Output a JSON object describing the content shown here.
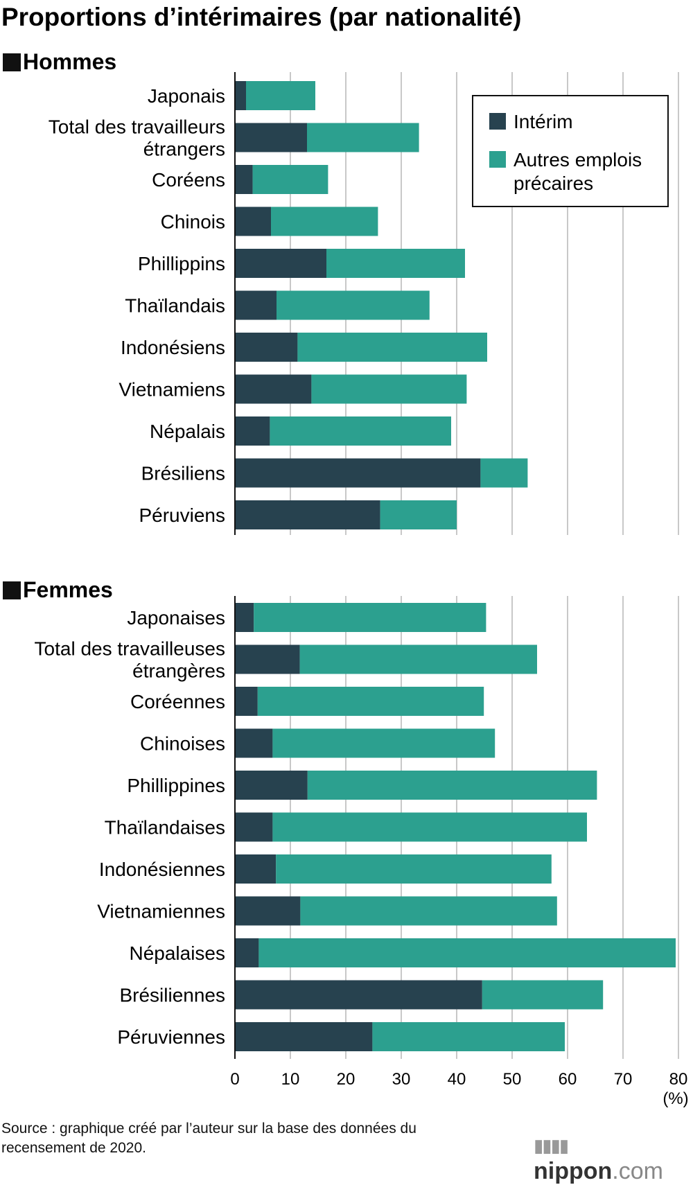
{
  "chart_data": {
    "type": "bar",
    "stacked": true,
    "orientation": "horizontal",
    "title": "Proportions d’intérimaires (par nationalité)",
    "xlim": [
      0,
      80
    ],
    "xticks": [
      "0",
      "10",
      "20",
      "30",
      "40",
      "50",
      "60",
      "70",
      "80"
    ],
    "xunit": "(%)",
    "legend": {
      "position": "top-right",
      "items": [
        {
          "label": "Intérim",
          "color": "#27424f"
        },
        {
          "label": "Autres emplois précaires",
          "color": "#2ca08f",
          "lines": [
            "Autres emplois",
            "précaires"
          ]
        }
      ]
    },
    "panels": [
      {
        "name": "Hommes",
        "categories": [
          [
            "Japonais"
          ],
          [
            "Total des travailleurs",
            "étrangers"
          ],
          [
            "Coréens"
          ],
          [
            "Chinois"
          ],
          [
            "Phillippins"
          ],
          [
            "Thaïlandais"
          ],
          [
            "Indonésiens"
          ],
          [
            "Vietnamiens"
          ],
          [
            "Népalais"
          ],
          [
            "Brésiliens"
          ],
          [
            "Péruviens"
          ]
        ],
        "series": [
          {
            "name": "Intérim",
            "values": [
              2.0,
              13.0,
              3.2,
              6.5,
              16.5,
              7.5,
              11.3,
              13.8,
              6.3,
              44.3,
              26.2
            ]
          },
          {
            "name": "Autres emplois précaires",
            "values": [
              12.5,
              20.2,
              13.6,
              19.3,
              25.0,
              27.6,
              34.2,
              28.0,
              32.7,
              8.5,
              13.8
            ]
          }
        ]
      },
      {
        "name": "Femmes",
        "categories": [
          [
            "Japonaises"
          ],
          [
            "Total des travailleuses",
            "étrangères"
          ],
          [
            "Coréennes"
          ],
          [
            "Chinoises"
          ],
          [
            "Phillippines"
          ],
          [
            "Thaïlandaises"
          ],
          [
            "Indonésiennes"
          ],
          [
            "Vietnamiennes"
          ],
          [
            "Népalaises"
          ],
          [
            "Brésiliennes"
          ],
          [
            "Péruviennes"
          ]
        ],
        "series": [
          {
            "name": "Intérim",
            "values": [
              3.4,
              11.7,
              4.1,
              6.8,
              13.1,
              6.8,
              7.4,
              11.8,
              4.3,
              44.6,
              24.8
            ]
          },
          {
            "name": "Autres emplois précaires",
            "values": [
              41.9,
              42.8,
              40.8,
              40.1,
              52.2,
              56.7,
              49.7,
              46.3,
              75.2,
              21.8,
              34.7
            ]
          }
        ]
      }
    ]
  },
  "source": "Source : graphique créé par l’auteur sur la base des données du recensement de 2020.",
  "logo": {
    "name": "nippon",
    "suffix": ".com"
  }
}
